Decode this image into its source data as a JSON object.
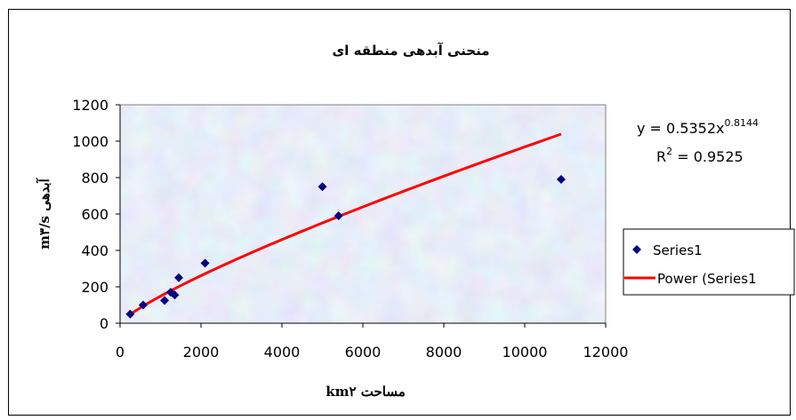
{
  "chart_data": {
    "type": "scatter",
    "title": "منحنی آبدهی منطقه ای",
    "xlabel": "مساحت km۲",
    "ylabel": "آبدهی m۳/s",
    "xlim": [
      0,
      12000
    ],
    "ylim": [
      0,
      1200
    ],
    "x_ticks": [
      0,
      2000,
      4000,
      6000,
      8000,
      10000,
      12000
    ],
    "y_ticks": [
      0,
      200,
      400,
      600,
      800,
      1000,
      1200
    ],
    "grid": false,
    "legend_position": "right",
    "series": [
      {
        "name": "Series1",
        "marker": "diamond",
        "color": "#000080",
        "points": [
          {
            "x": 250,
            "y": 50
          },
          {
            "x": 570,
            "y": 100
          },
          {
            "x": 1100,
            "y": 125
          },
          {
            "x": 1250,
            "y": 170
          },
          {
            "x": 1350,
            "y": 155
          },
          {
            "x": 1450,
            "y": 250
          },
          {
            "x": 2100,
            "y": 330
          },
          {
            "x": 5000,
            "y": 750
          },
          {
            "x": 5400,
            "y": 590
          },
          {
            "x": 10900,
            "y": 790
          }
        ]
      },
      {
        "name": "Power (Series1",
        "type": "trendline",
        "color": "#ff0000",
        "coefficient": 0.5352,
        "exponent": 0.8144,
        "x_range": [
          250,
          10900
        ]
      }
    ],
    "equation": {
      "prefix": "y = 0.5352x",
      "exponent": "0.8144",
      "r2_prefix": "R",
      "r2_power": "2",
      "r2_value": " = 0.9525"
    }
  }
}
